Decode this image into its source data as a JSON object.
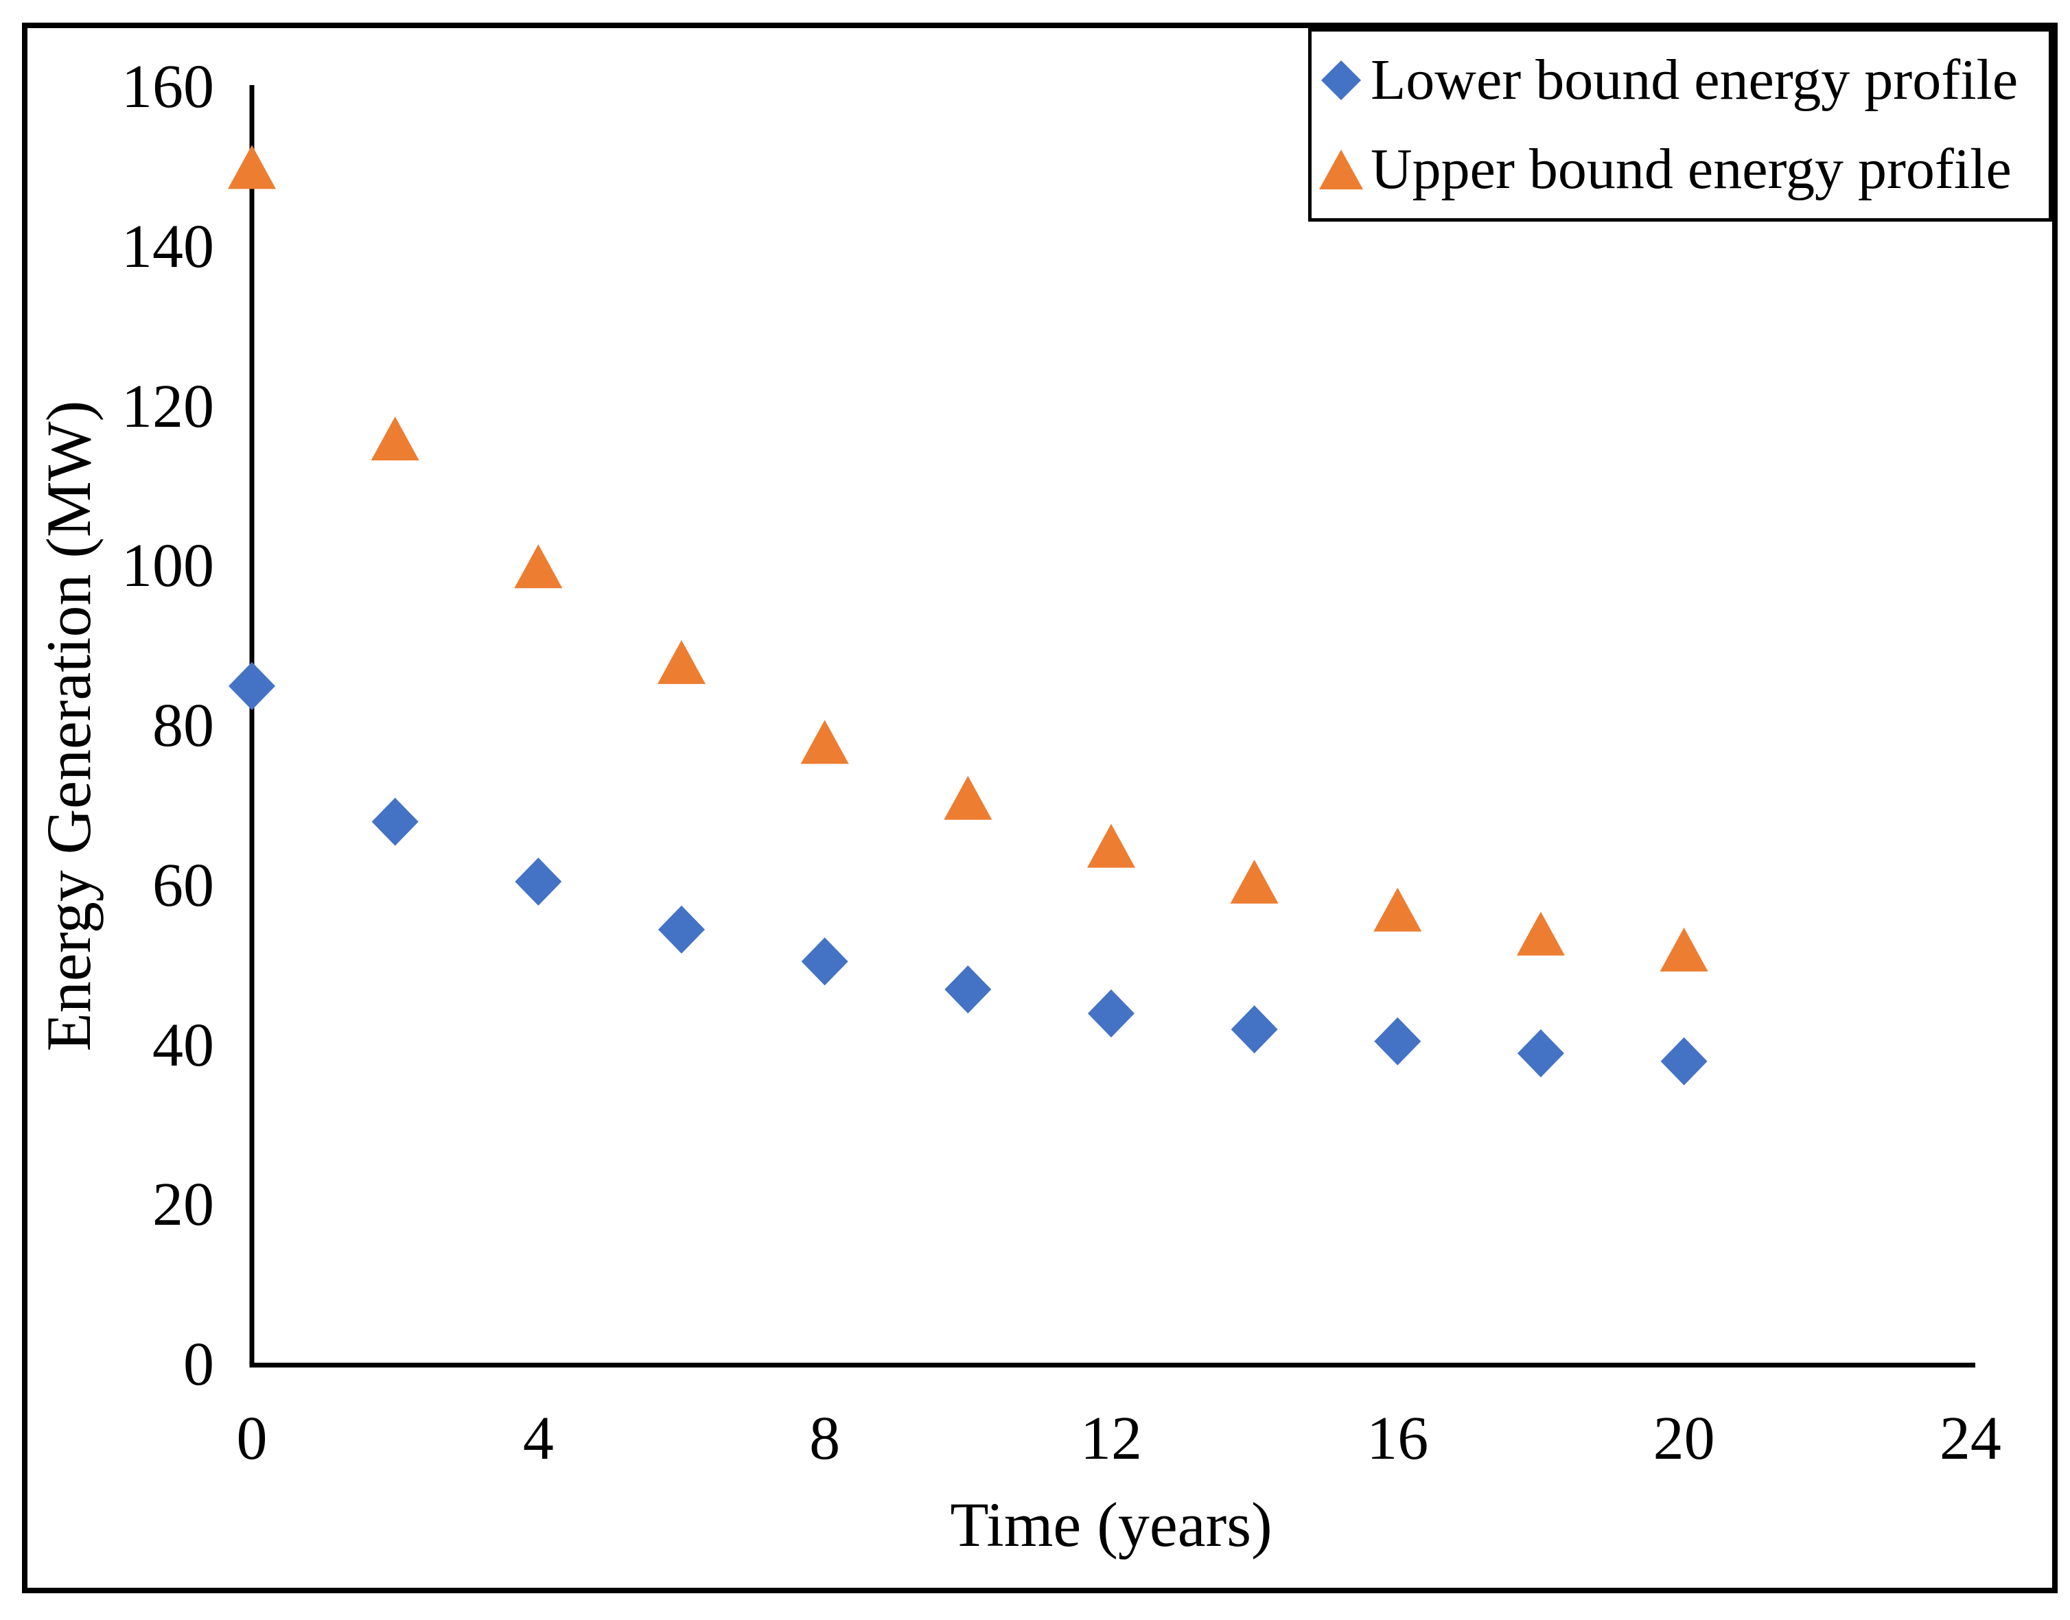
{
  "figure": {
    "background": "#FFFFFF",
    "border_color": "#000000"
  },
  "chart_data": {
    "type": "scatter",
    "title": "",
    "xlabel": "Time (years)",
    "ylabel": "Energy Generation (MW)",
    "xlim": [
      0,
      24
    ],
    "ylim": [
      0,
      160
    ],
    "x_ticks": [
      0,
      4,
      8,
      12,
      16,
      20,
      24
    ],
    "y_ticks": [
      0,
      20,
      40,
      60,
      80,
      100,
      120,
      140,
      160
    ],
    "grid": false,
    "legend_position": "top-right",
    "x": [
      0,
      2,
      4,
      6,
      8,
      10,
      12,
      14,
      16,
      18,
      20
    ],
    "series": [
      {
        "name": "Lower bound energy profile",
        "marker": "diamond",
        "color": "#4472C4",
        "values": [
          85,
          68,
          60.5,
          54.5,
          50.5,
          47,
          44,
          42,
          40.5,
          39,
          38
        ]
      },
      {
        "name": "Upper bound energy profile",
        "marker": "triangle",
        "color": "#ED7D31",
        "values": [
          150,
          116,
          100,
          88,
          78,
          71,
          65,
          60.5,
          57,
          54,
          52
        ]
      }
    ]
  }
}
